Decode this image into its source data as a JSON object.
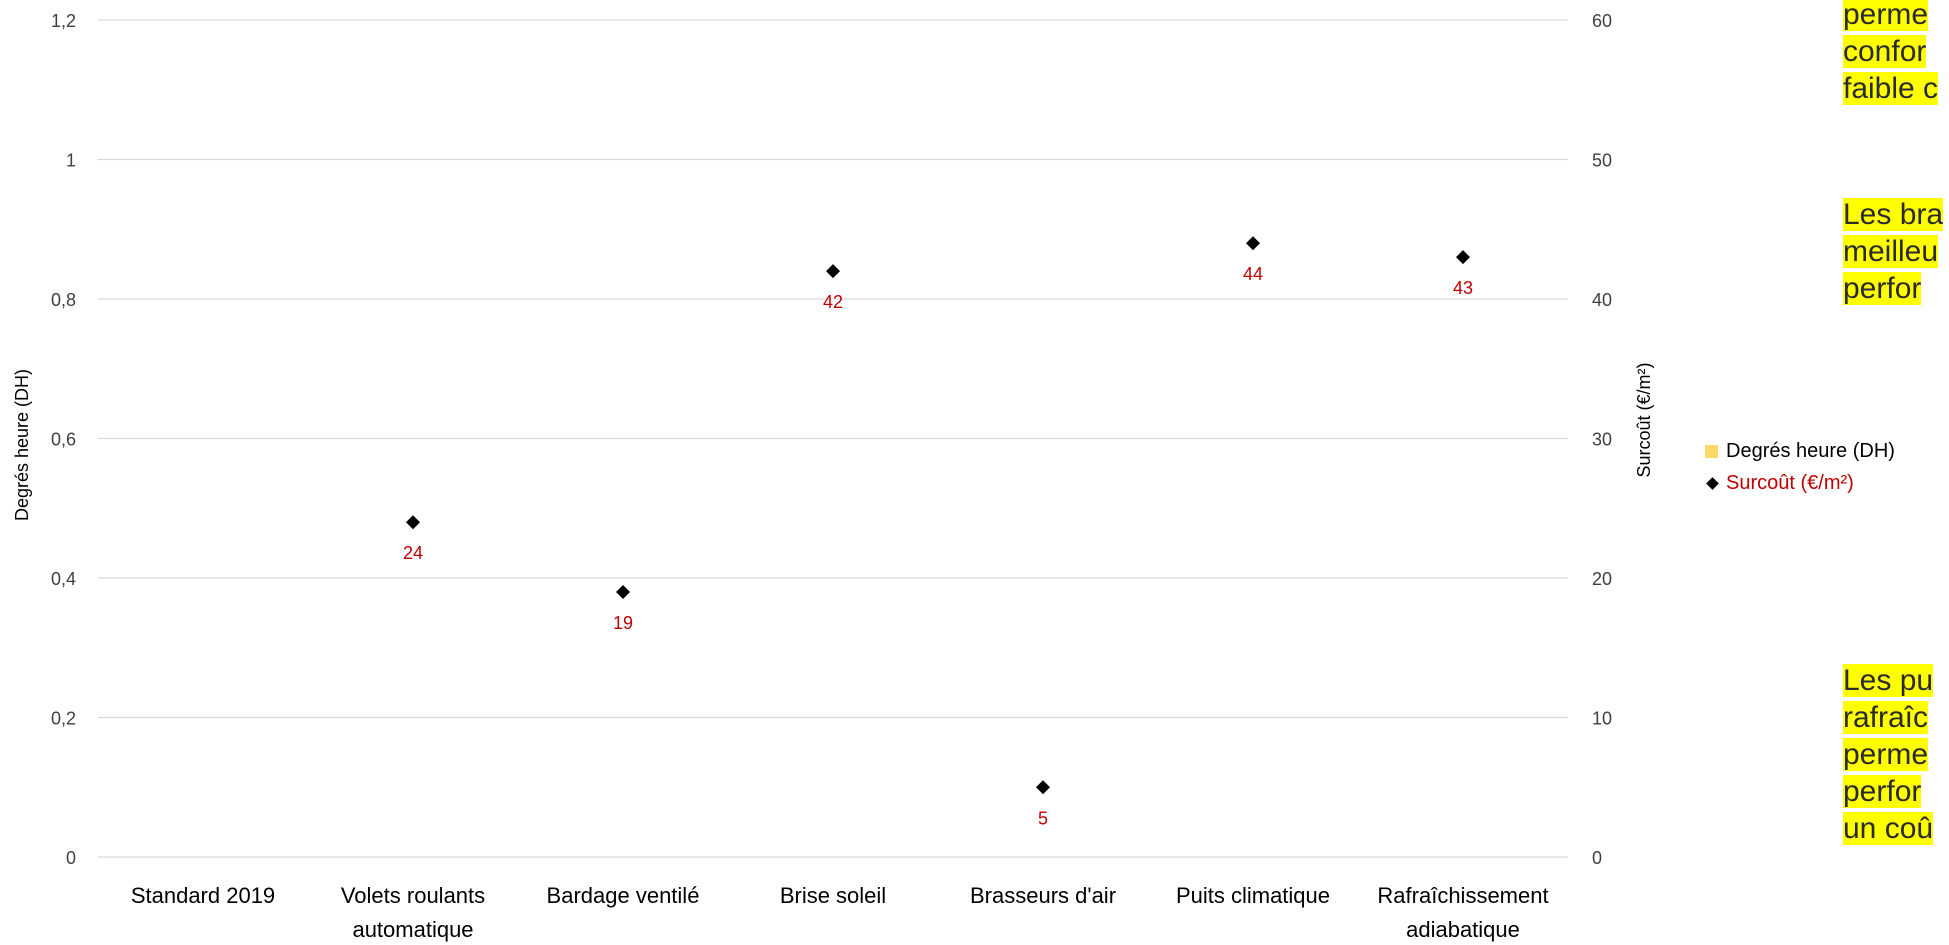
{
  "chart_data": {
    "type": "scatter",
    "categories": [
      "Standard 2019",
      "Volets roulants automatique",
      "Bardage ventilé",
      "Brise soleil",
      "Brasseurs d'air",
      "Puits climatique",
      "Rafraîchissement adiabatique"
    ],
    "category_lines": [
      [
        "Standard 2019"
      ],
      [
        "Volets roulants",
        "automatique"
      ],
      [
        "Bardage ventilé"
      ],
      [
        "Brise soleil"
      ],
      [
        "Brasseurs d'air"
      ],
      [
        "Puits climatique"
      ],
      [
        "Rafraîchissement",
        "adiabatique"
      ]
    ],
    "series": [
      {
        "name": "Degrés heure (DH)",
        "axis": "left",
        "type": "bar",
        "color": "#ffd966",
        "values": [
          null,
          null,
          null,
          null,
          null,
          null,
          null
        ]
      },
      {
        "name": "Surcoût (€/m²)",
        "axis": "right",
        "type": "scatter",
        "marker": "diamond",
        "color": "#000000",
        "label_color": "#c00000",
        "values": [
          null,
          24,
          19,
          42,
          5,
          44,
          43
        ]
      }
    ],
    "left_axis": {
      "label": "Degrés heure (DH)",
      "min": 0,
      "max": 1.2,
      "ticks": [
        0,
        0.2,
        0.4,
        0.6,
        0.8,
        1,
        1.2
      ],
      "tick_labels": [
        "0",
        "0,2",
        "0,4",
        "0,6",
        "0,8",
        "1",
        "1,2"
      ]
    },
    "right_axis": {
      "label": "Surcoût (€/m²)",
      "min": 0,
      "max": 60,
      "ticks": [
        0,
        10,
        20,
        30,
        40,
        50,
        60
      ],
      "tick_labels": [
        "0",
        "10",
        "20",
        "30",
        "40",
        "50",
        "60"
      ]
    },
    "grid": true,
    "legend_position": "right"
  },
  "legend": [
    {
      "label": "Degrés heure (DH)",
      "symbol": "square",
      "color": "#ffd966",
      "text_color": "#000000"
    },
    {
      "label": "Surcoût (€/m²)",
      "symbol": "diamond",
      "color": "#000000",
      "text_color": "#c00000"
    }
  ],
  "notes": [
    {
      "lines": [
        "perme",
        "confor",
        "faible c"
      ]
    },
    {
      "lines": [
        "Les bra",
        "meilleu",
        "perfor"
      ]
    },
    {
      "lines": [
        "Les pu",
        "rafraîc",
        "perme",
        "perfor",
        "un coû"
      ]
    }
  ],
  "colors": {
    "gridline": "#d9d9d9",
    "highlight": "#ffff00",
    "data_label": "#c00000"
  }
}
